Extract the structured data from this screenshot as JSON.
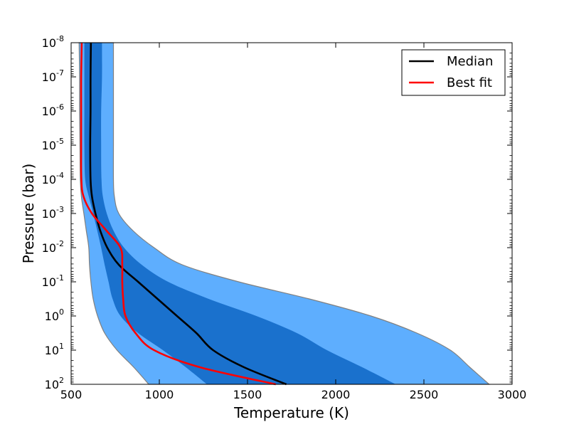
{
  "chart_data": {
    "type": "area",
    "title": "",
    "xlabel": "Temperature  (K)",
    "ylabel": "Pressure  (bar)",
    "xlim": [
      500,
      3000
    ],
    "xticks": [
      500,
      1000,
      1500,
      2000,
      2500,
      3000
    ],
    "xtick_labels": [
      "500",
      "1000",
      "1500",
      "2000",
      "2500",
      "3000"
    ],
    "y_scale": "log",
    "y_inverted": true,
    "ylim_log10": [
      -8,
      2
    ],
    "yticks": [
      {
        "base": "10",
        "exp": "-8"
      },
      {
        "base": "10",
        "exp": "-7"
      },
      {
        "base": "10",
        "exp": "-6"
      },
      {
        "base": "10",
        "exp": "-5"
      },
      {
        "base": "10",
        "exp": "-4"
      },
      {
        "base": "10",
        "exp": "-3"
      },
      {
        "base": "10",
        "exp": "-2"
      },
      {
        "base": "10",
        "exp": "-1"
      },
      {
        "base": "10",
        "exp": "0"
      },
      {
        "base": "10",
        "exp": "1"
      },
      {
        "base": "10",
        "exp": "2"
      }
    ],
    "legend_position": "top-right",
    "grid": false,
    "bands": [
      {
        "level": "outer",
        "color": "#5eaefe",
        "edge_color": "#808080",
        "log10_p": [
          -8,
          -7,
          -6,
          -5,
          -4,
          -3.5,
          -3,
          -2.5,
          -2,
          -1.5,
          -1,
          -0.5,
          0,
          0.5,
          1,
          1.5,
          2
        ],
        "t_low": [
          545,
          548,
          548,
          550,
          552,
          558,
          572,
          586,
          600,
          604,
          612,
          625,
          650,
          690,
          760,
          855,
          940
        ],
        "t_high": [
          740,
          740,
          740,
          740,
          740,
          745,
          770,
          850,
          970,
          1130,
          1450,
          1850,
          2200,
          2460,
          2650,
          2760,
          2870
        ]
      },
      {
        "level": "inner",
        "color": "#1a71cd",
        "log10_p": [
          -8,
          -7,
          -6,
          -5,
          -4,
          -3.5,
          -3,
          -2.5,
          -2,
          -1.5,
          -1,
          -0.5,
          0,
          0.5,
          1,
          1.5,
          2
        ],
        "t_low": [
          575,
          575,
          575,
          575,
          580,
          600,
          625,
          648,
          670,
          690,
          712,
          735,
          780,
          880,
          1020,
          1150,
          1270
        ],
        "t_high": [
          675,
          675,
          670,
          670,
          672,
          680,
          702,
          740,
          800,
          900,
          1050,
          1280,
          1550,
          1780,
          1950,
          2150,
          2340
        ]
      }
    ],
    "series": [
      {
        "name": "Median",
        "color": "#000000",
        "log10_p": [
          -8,
          -7,
          -6,
          -5,
          -4,
          -3.5,
          -3,
          -2.5,
          -2,
          -1.5,
          -1,
          -0.5,
          0,
          0.5,
          1,
          1.5,
          2
        ],
        "t": [
          612,
          610,
          610,
          608,
          610,
          618,
          638,
          665,
          705,
          770,
          880,
          990,
          1100,
          1210,
          1305,
          1480,
          1720
        ]
      },
      {
        "name": "Best fit",
        "color": "#ff0000",
        "log10_p": [
          -8,
          -7,
          -6,
          -5,
          -4,
          -3.5,
          -3,
          -2.5,
          -2,
          -1.5,
          -1,
          -0.5,
          0,
          0.5,
          1,
          1.5,
          2
        ],
        "t": [
          560,
          557,
          557,
          557,
          558,
          570,
          618,
          700,
          780,
          790,
          790,
          795,
          808,
          865,
          970,
          1230,
          1660
        ]
      }
    ]
  }
}
